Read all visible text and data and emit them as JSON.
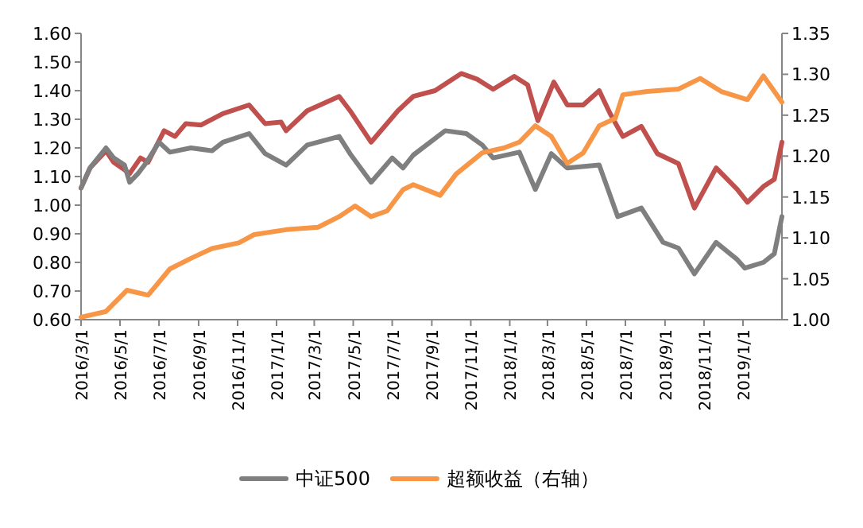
{
  "chart_data": {
    "type": "line",
    "x": [
      "2016-03-01",
      "2016-03-15",
      "2016-04-09",
      "2016-04-21",
      "2016-05-04",
      "2016-05-16",
      "2016-06-02",
      "2016-06-14",
      "2016-07-09",
      "2016-07-26",
      "2016-08-12",
      "2016-09-05",
      "2016-10-09",
      "2016-11-19",
      "2016-12-14",
      "2017-01-08",
      "2017-01-16",
      "2017-02-18",
      "2017-04-09",
      "2017-04-26",
      "2017-05-29",
      "2017-07-10",
      "2017-08-03",
      "2017-09-06",
      "2017-10-17",
      "2017-11-11",
      "2017-12-06",
      "2018-01-08",
      "2018-01-29",
      "2018-02-14",
      "2018-03-11",
      "2018-04-01",
      "2018-04-26",
      "2018-05-21",
      "2018-06-07",
      "2018-06-27",
      "2018-07-26",
      "2018-08-20",
      "2018-09-22",
      "2018-10-17",
      "2018-11-20",
      "2018-12-23",
      "2019-01-08",
      "2019-02-02",
      "2019-02-19",
      "2019-03-03"
    ],
    "series": [
      {
        "color": "#c0504d",
        "values": [
          1.06,
          1.13,
          1.19,
          1.15,
          1.13,
          1.11,
          1.165,
          1.15,
          1.26,
          1.24,
          1.285,
          1.28,
          1.32,
          1.35,
          1.285,
          1.29,
          1.26,
          1.33,
          1.38,
          1.33,
          1.22,
          1.33,
          1.38,
          1.4,
          1.46,
          1.44,
          1.405,
          1.45,
          1.42,
          1.295,
          1.43,
          1.35,
          1.35,
          1.4,
          1.32,
          1.24,
          1.275,
          1.18,
          1.145,
          0.99,
          1.13,
          1.055,
          1.01,
          1.065,
          1.09,
          1.22
        ]
      },
      {
        "name": "中证500",
        "color": "#7f7f7f",
        "x": [
          "2016-03-01",
          "2016-03-15",
          "2016-04-09",
          "2016-04-21",
          "2016-05-08",
          "2016-05-16",
          "2016-05-29",
          "2016-06-10",
          "2016-07-01",
          "2016-07-18",
          "2016-08-20",
          "2016-09-22",
          "2016-10-09",
          "2016-11-19",
          "2016-12-14",
          "2017-01-16",
          "2017-02-18",
          "2017-04-09",
          "2017-04-26",
          "2017-05-29",
          "2017-07-01",
          "2017-07-18",
          "2017-08-03",
          "2017-09-22",
          "2017-10-25",
          "2017-11-19",
          "2017-12-06",
          "2018-01-16",
          "2018-02-10",
          "2018-03-07",
          "2018-04-01",
          "2018-05-21",
          "2018-06-19",
          "2018-07-26",
          "2018-08-29",
          "2018-09-22",
          "2018-10-17",
          "2018-11-20",
          "2018-12-23",
          "2019-01-04",
          "2019-02-02",
          "2019-02-19",
          "2019-03-03"
        ],
        "values": [
          1.06,
          1.13,
          1.2,
          1.165,
          1.14,
          1.08,
          1.11,
          1.145,
          1.22,
          1.185,
          1.2,
          1.19,
          1.22,
          1.25,
          1.18,
          1.14,
          1.21,
          1.24,
          1.18,
          1.08,
          1.165,
          1.13,
          1.175,
          1.26,
          1.25,
          1.21,
          1.165,
          1.185,
          1.055,
          1.18,
          1.13,
          1.14,
          0.96,
          0.99,
          0.87,
          0.85,
          0.76,
          0.87,
          0.81,
          0.78,
          0.8,
          0.83,
          0.96
        ]
      },
      {
        "name": "超额收益（右轴）",
        "color": "#f79646",
        "axis": "y2",
        "x": [
          "2016-03-01",
          "2016-04-09",
          "2016-05-12",
          "2016-06-14",
          "2016-07-18",
          "2016-08-20",
          "2016-09-22",
          "2016-11-03",
          "2016-11-27",
          "2017-01-16",
          "2017-03-07",
          "2017-04-09",
          "2017-05-04",
          "2017-05-29",
          "2017-06-23",
          "2017-07-18",
          "2017-08-03",
          "2017-09-14",
          "2017-10-09",
          "2017-11-19",
          "2017-12-23",
          "2018-01-16",
          "2018-02-10",
          "2018-03-07",
          "2018-04-01",
          "2018-04-26",
          "2018-05-21",
          "2018-06-15",
          "2018-06-27",
          "2018-08-04",
          "2018-09-22",
          "2018-10-26",
          "2018-11-28",
          "2019-01-08",
          "2019-02-02",
          "2019-03-03"
        ],
        "values": [
          1.003,
          1.01,
          1.036,
          1.03,
          1.062,
          1.075,
          1.087,
          1.094,
          1.104,
          1.11,
          1.113,
          1.126,
          1.139,
          1.126,
          1.133,
          1.159,
          1.165,
          1.152,
          1.178,
          1.204,
          1.21,
          1.217,
          1.237,
          1.224,
          1.191,
          1.204,
          1.237,
          1.246,
          1.275,
          1.279,
          1.282,
          1.295,
          1.279,
          1.269,
          1.298,
          1.266
        ]
      }
    ],
    "xlim": [
      "2016-03-01",
      "2019-03-03"
    ],
    "xticks": [
      {
        "value": "2016-03-01",
        "label": "2016/3/1"
      },
      {
        "value": "2016-05-01",
        "label": "2016/5/1"
      },
      {
        "value": "2016-07-01",
        "label": "2016/7/1"
      },
      {
        "value": "2016-09-01",
        "label": "2016/9/1"
      },
      {
        "value": "2016-11-01",
        "label": "2016/11/1"
      },
      {
        "value": "2017-01-01",
        "label": "2017/1/1"
      },
      {
        "value": "2017-03-01",
        "label": "2017/3/1"
      },
      {
        "value": "2017-05-01",
        "label": "2017/5/1"
      },
      {
        "value": "2017-07-01",
        "label": "2017/7/1"
      },
      {
        "value": "2017-09-01",
        "label": "2017/9/1"
      },
      {
        "value": "2017-11-01",
        "label": "2017/11/1"
      },
      {
        "value": "2018-01-01",
        "label": "2018/1/1"
      },
      {
        "value": "2018-03-01",
        "label": "2018/3/1"
      },
      {
        "value": "2018-05-01",
        "label": "2018/5/1"
      },
      {
        "value": "2018-07-01",
        "label": "2018/7/1"
      },
      {
        "value": "2018-09-01",
        "label": "2018/9/1"
      },
      {
        "value": "2018-11-01",
        "label": "2018/11/1"
      },
      {
        "value": "2019-01-01",
        "label": "2019/1/1"
      }
    ],
    "ylim": [
      0.6,
      1.6
    ],
    "yticks": [
      {
        "value": 0.6,
        "label": "0.60"
      },
      {
        "value": 0.7,
        "label": "0.70"
      },
      {
        "value": 0.8,
        "label": "0.80"
      },
      {
        "value": 0.9,
        "label": "0.90"
      },
      {
        "value": 1.0,
        "label": "1.00"
      },
      {
        "value": 1.1,
        "label": "1.10"
      },
      {
        "value": 1.2,
        "label": "1.20"
      },
      {
        "value": 1.3,
        "label": "1.30"
      },
      {
        "value": 1.4,
        "label": "1.40"
      },
      {
        "value": 1.5,
        "label": "1.50"
      },
      {
        "value": 1.6,
        "label": "1.60"
      }
    ],
    "y2lim": [
      1.0,
      1.35
    ],
    "y2ticks": [
      {
        "value": 1.0,
        "label": "1.00"
      },
      {
        "value": 1.05,
        "label": "1.05"
      },
      {
        "value": 1.1,
        "label": "1.10"
      },
      {
        "value": 1.15,
        "label": "1.15"
      },
      {
        "value": 1.2,
        "label": "1.20"
      },
      {
        "value": 1.25,
        "label": "1.25"
      },
      {
        "value": 1.3,
        "label": "1.30"
      },
      {
        "value": 1.35,
        "label": "1.35"
      }
    ],
    "grid": false,
    "legend": "bottom",
    "marker": "none",
    "line_style": "solid"
  }
}
